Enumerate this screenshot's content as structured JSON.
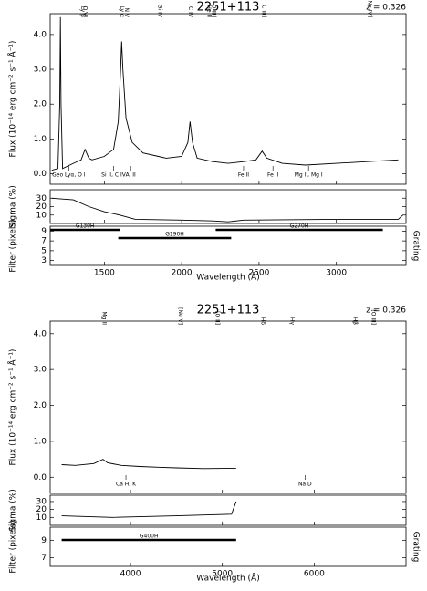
{
  "chart_data": [
    {
      "type": "line",
      "title": "2251+113",
      "annotation": "z = 0.326",
      "xlabel": "Wavelength (Å)",
      "ylabel": "Flux (10⁻¹⁴ erg cm⁻² s⁻¹ Å⁻¹)",
      "sigma_label": "Sigma (%)",
      "filter_label": "Filter (pixels)",
      "grating_label": "Grating",
      "color": "#000000",
      "xlim": [
        1150,
        3450
      ],
      "xticks": [
        1500,
        2000,
        2500,
        3000
      ],
      "ylim": [
        -0.3,
        4.6
      ],
      "yticks": [
        {
          "value": 0,
          "label": "0.0"
        },
        {
          "value": 1,
          "label": "1.0"
        },
        {
          "value": 2,
          "label": "2.0"
        },
        {
          "value": 3,
          "label": "3.0"
        },
        {
          "value": 4,
          "label": "4.0"
        }
      ],
      "x": [
        1160,
        1200,
        1212,
        1216,
        1220,
        1230,
        1300,
        1350,
        1375,
        1400,
        1420,
        1500,
        1560,
        1590,
        1605,
        1612,
        1620,
        1640,
        1680,
        1750,
        1850,
        1900,
        2000,
        2040,
        2054,
        2070,
        2100,
        2200,
        2300,
        2400,
        2480,
        2520,
        2550,
        2650,
        2800,
        3000,
        3200,
        3400
      ],
      "values": [
        0.1,
        0.15,
        2.0,
        4.5,
        2.0,
        0.15,
        0.3,
        0.4,
        0.7,
        0.45,
        0.4,
        0.5,
        0.7,
        1.5,
        3.0,
        3.8,
        3.0,
        1.6,
        0.9,
        0.6,
        0.5,
        0.45,
        0.5,
        0.9,
        1.5,
        0.9,
        0.45,
        0.35,
        0.3,
        0.35,
        0.4,
        0.65,
        0.45,
        0.3,
        0.25,
        0.3,
        0.35,
        0.4
      ],
      "sigma": {
        "ylim": [
          0,
          40
        ],
        "yticks": [
          10,
          20,
          30
        ],
        "x": [
          1160,
          1300,
          1400,
          1500,
          1600,
          1700,
          2000,
          2200,
          2300,
          2400,
          3000,
          3400,
          3430
        ],
        "values": [
          30,
          28,
          20,
          14,
          10,
          5,
          4,
          3,
          2,
          4,
          5,
          5,
          10
        ]
      },
      "filter": {
        "ylim": [
          2,
          10
        ],
        "yticks": [
          3,
          5,
          7,
          9
        ]
      },
      "gratings": [
        {
          "name": "G130H",
          "start": 1150,
          "end": 1600
        },
        {
          "name": "G190H",
          "start": 1590,
          "end": 2320
        },
        {
          "name": "G270H",
          "start": 2220,
          "end": 3300
        }
      ],
      "emission_lines": [
        {
          "label": "Ly β",
          "x": 1360
        },
        {
          "label": "O VI",
          "x": 1375
        },
        {
          "label": "Ly α",
          "x": 1612
        },
        {
          "label": "N V",
          "x": 1643
        },
        {
          "label": "Si IV",
          "x": 1858
        },
        {
          "label": "C IV",
          "x": 2054
        },
        {
          "label": "He II",
          "x": 2175
        },
        {
          "label": "O III]",
          "x": 2207
        },
        {
          "label": "C III]",
          "x": 2531
        },
        {
          "label": "[Ne IV]",
          "x": 3214
        }
      ],
      "absorption_lines": [
        {
          "label": "Geo Lyα, O I",
          "x": 1270
        },
        {
          "label": "Si II, C IV",
          "x": 1560
        },
        {
          "label": "Al II",
          "x": 1670
        },
        {
          "label": "Fe II",
          "x": 2400
        },
        {
          "label": "Fe II",
          "x": 2590
        },
        {
          "label": "Mg II, Mg I",
          "x": 2820
        }
      ]
    },
    {
      "type": "line",
      "title": "2251+113",
      "annotation": "z = 0.326",
      "xlabel": "Wavelength (Å)",
      "ylabel": "Flux (10⁻¹⁴ erg cm⁻² s⁻¹ Å⁻¹)",
      "sigma_label": "Sigma (%)",
      "filter_label": "Filter (pixels)",
      "grating_label": "Grating",
      "color": "#000000",
      "xlim": [
        3125,
        7000
      ],
      "xticks": [
        4000,
        5000,
        6000
      ],
      "ylim": [
        -0.45,
        4.35
      ],
      "yticks": [
        {
          "value": 0,
          "label": "0.0"
        },
        {
          "value": 1,
          "label": "1.0"
        },
        {
          "value": 2,
          "label": "2.0"
        },
        {
          "value": 3,
          "label": "3.0"
        },
        {
          "value": 4,
          "label": "4.0"
        }
      ],
      "x": [
        3250,
        3400,
        3600,
        3700,
        3750,
        3900,
        4100,
        4300,
        4500,
        4800,
        5150
      ],
      "values": [
        0.35,
        0.33,
        0.38,
        0.5,
        0.4,
        0.33,
        0.3,
        0.28,
        0.26,
        0.24,
        0.25
      ],
      "sigma": {
        "ylim": [
          0,
          38
        ],
        "yticks": [
          10,
          20,
          30
        ],
        "x": [
          3250,
          3800,
          4500,
          5100,
          5150
        ],
        "values": [
          12,
          10,
          12,
          14,
          30
        ]
      },
      "filter": {
        "ylim": [
          6,
          10.5
        ],
        "yticks": [
          7,
          9
        ]
      },
      "gratings": [
        {
          "name": "G400H",
          "start": 3250,
          "end": 5150
        }
      ],
      "emission_lines": [
        {
          "label": "Mg II",
          "x": 3710
        },
        {
          "label": "[Ne V]",
          "x": 4543
        },
        {
          "label": "[O II]",
          "x": 4942
        },
        {
          "label": "Hδ",
          "x": 5439
        },
        {
          "label": "Hγ",
          "x": 5756
        },
        {
          "label": "Hβ",
          "x": 6446
        },
        {
          "label": "[O III]",
          "x": 6640
        }
      ],
      "absorption_lines": [
        {
          "label": "Ca H, K",
          "x": 3950
        },
        {
          "label": "Na D",
          "x": 5900
        }
      ]
    }
  ]
}
